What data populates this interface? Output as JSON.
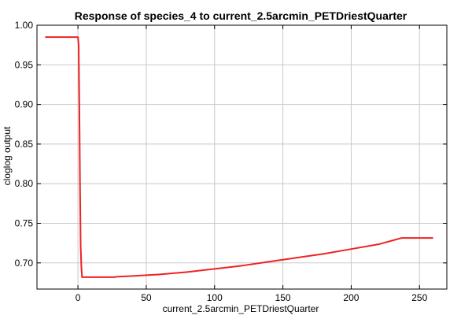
{
  "chart_data": {
    "type": "line",
    "title": "Response of species_4 to current_2.5arcmin_PETDriestQuarter",
    "xlabel": "current_2.5arcmin_PETDriestQuarter",
    "ylabel": "cloglog output",
    "xlim": [
      -30,
      270
    ],
    "ylim": [
      0.667,
      1.0
    ],
    "x_ticks": [
      0,
      50,
      100,
      150,
      200,
      250
    ],
    "y_ticks": [
      0.7,
      0.75,
      0.8,
      0.85,
      0.9,
      0.95,
      1.0
    ],
    "x_tick_labels": [
      "0",
      "50",
      "100",
      "150",
      "200",
      "250"
    ],
    "y_tick_labels": [
      "0.70",
      "0.75",
      "0.80",
      "0.85",
      "0.90",
      "0.95",
      "1.00"
    ],
    "grid": true,
    "series": [
      {
        "color": "#ee2222",
        "x": [
          -24,
          0,
          0.5,
          1,
          1.5,
          2,
          2.5,
          3,
          5,
          10,
          20,
          27,
          28,
          40,
          60,
          80,
          100,
          120,
          140,
          160,
          180,
          200,
          220,
          237,
          260
        ],
        "y": [
          0.985,
          0.985,
          0.975,
          0.9,
          0.8,
          0.72,
          0.695,
          0.682,
          0.682,
          0.682,
          0.682,
          0.682,
          0.6825,
          0.6835,
          0.6855,
          0.6885,
          0.6925,
          0.6965,
          0.7015,
          0.7065,
          0.7115,
          0.7175,
          0.7235,
          0.7315,
          0.7315
        ]
      }
    ]
  }
}
